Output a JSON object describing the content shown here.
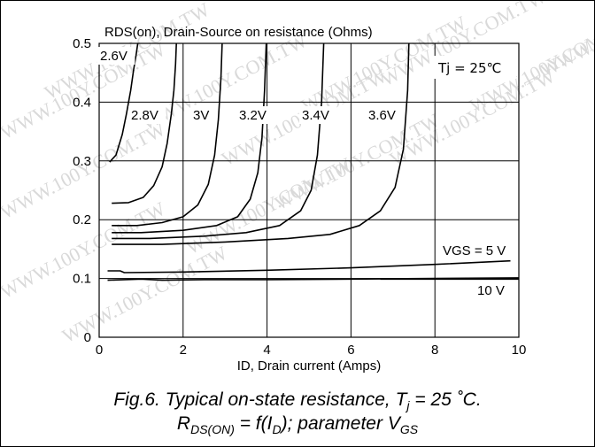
{
  "chart_data": {
    "type": "line",
    "title": "RDS(on), Drain-Source on resistance (Ohms)",
    "xlabel": "ID, Drain current (Amps)",
    "ylabel": "RDS(on), Drain-Source on resistance (Ohms)",
    "xlim": [
      0,
      10
    ],
    "ylim": [
      0,
      0.5
    ],
    "xticks": [
      "0",
      "2",
      "4",
      "6",
      "8",
      "10"
    ],
    "xtick_values": [
      0,
      2,
      4,
      6,
      8,
      10
    ],
    "yticks": [
      "0",
      "0.1",
      "0.2",
      "0.3",
      "0.4",
      "0.5"
    ],
    "ytick_values": [
      0,
      0.1,
      0.2,
      0.3,
      0.4,
      0.5
    ],
    "grid": true,
    "annotation": "Tj = 25℃",
    "series": [
      {
        "name": "2.6V",
        "x": [
          0.25,
          0.4,
          0.55,
          0.65,
          0.75,
          0.82,
          0.88,
          0.92
        ],
        "y": [
          0.298,
          0.31,
          0.345,
          0.38,
          0.42,
          0.455,
          0.48,
          0.5
        ]
      },
      {
        "name": "2.8V",
        "x": [
          0.3,
          0.7,
          1.05,
          1.3,
          1.5,
          1.62,
          1.72,
          1.78,
          1.82,
          1.84
        ],
        "y": [
          0.228,
          0.229,
          0.238,
          0.258,
          0.29,
          0.33,
          0.38,
          0.42,
          0.465,
          0.5
        ]
      },
      {
        "name": "3V",
        "x": [
          0.3,
          0.9,
          1.5,
          2.0,
          2.35,
          2.6,
          2.75,
          2.84,
          2.9,
          2.93
        ],
        "y": [
          0.19,
          0.19,
          0.195,
          0.205,
          0.225,
          0.26,
          0.31,
          0.37,
          0.44,
          0.5
        ]
      },
      {
        "name": "3.2V",
        "x": [
          0.3,
          1.0,
          2.0,
          2.8,
          3.3,
          3.6,
          3.78,
          3.88,
          3.94,
          3.98
        ],
        "y": [
          0.178,
          0.178,
          0.182,
          0.19,
          0.205,
          0.235,
          0.28,
          0.34,
          0.42,
          0.5
        ]
      },
      {
        "name": "3.4V",
        "x": [
          0.3,
          1.2,
          2.5,
          3.5,
          4.3,
          4.8,
          5.05,
          5.2,
          5.3,
          5.35
        ],
        "y": [
          0.168,
          0.168,
          0.172,
          0.178,
          0.19,
          0.215,
          0.25,
          0.31,
          0.4,
          0.5
        ]
      },
      {
        "name": "3.6V",
        "x": [
          0.3,
          1.5,
          3.0,
          4.5,
          5.5,
          6.2,
          6.7,
          7.05,
          7.25,
          7.35,
          7.38
        ],
        "y": [
          0.158,
          0.158,
          0.162,
          0.168,
          0.175,
          0.19,
          0.215,
          0.255,
          0.32,
          0.42,
          0.5
        ]
      },
      {
        "name": "VGS = 5 V",
        "x": [
          0.2,
          0.5,
          0.6,
          2.0,
          4.0,
          6.0,
          8.0,
          9.8
        ],
        "y": [
          0.113,
          0.113,
          0.11,
          0.111,
          0.114,
          0.118,
          0.124,
          0.13
        ]
      },
      {
        "name": "10 V",
        "x": [
          0.2,
          1.0,
          1.5,
          2.5,
          4.0,
          6.0,
          8.0,
          10.0
        ],
        "y": [
          0.097,
          0.099,
          0.097,
          0.098,
          0.098,
          0.099,
          0.1,
          0.101
        ]
      }
    ]
  },
  "caption": {
    "line1_prefix": "Fig.6.   Typical on-state resistance, T",
    "line1_sub": "j",
    "line1_suffix": " = 25 ˚C.",
    "line2_r": "R",
    "line2_r_sub": "DS(ON)",
    "line2_mid": " = f(I",
    "line2_i_sub": "D",
    "line2_end": "); parameter V",
    "line2_v_sub": "GS"
  },
  "watermark": "WWW.100Y.COM.TW"
}
